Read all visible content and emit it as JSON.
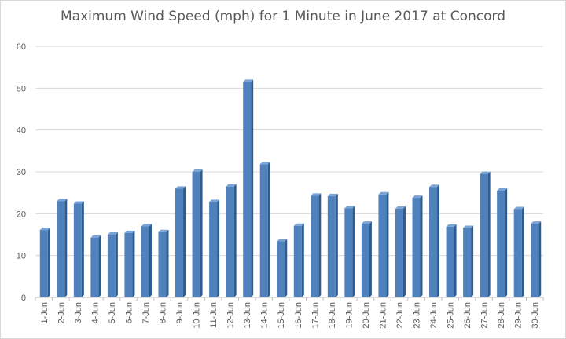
{
  "chart_data": {
    "type": "bar",
    "title": "Maximum Wind Speed (mph) for 1 Minute in June 2017 at Concord",
    "xlabel": "",
    "ylabel": "",
    "ylim": [
      0,
      60
    ],
    "yticks": [
      0,
      10,
      20,
      30,
      40,
      50,
      60
    ],
    "grid": true,
    "bar_color": "#4f81bd",
    "categories": [
      "1-Jun",
      "2-Jun",
      "3-Jun",
      "4-Jun",
      "5-Jun",
      "6-Jun",
      "7-Jun",
      "8-Jun",
      "9-Jun",
      "10-Jun",
      "11-Jun",
      "12-Jun",
      "13-Jun",
      "14-Jun",
      "15-Jun",
      "16-Jun",
      "17-Jun",
      "18-Jun",
      "19-Jun",
      "20-Jun",
      "21-Jun",
      "22-Jun",
      "23-Jun",
      "24-Jun",
      "25-Jun",
      "26-Jun",
      "27-Jun",
      "28-Jun",
      "29-Jun",
      "30-Jun"
    ],
    "values": [
      16.1,
      23.0,
      22.4,
      14.3,
      15.0,
      15.4,
      17.0,
      15.6,
      26.0,
      30.0,
      22.8,
      26.5,
      51.5,
      31.8,
      13.4,
      17.1,
      24.3,
      24.2,
      21.3,
      17.6,
      24.6,
      21.2,
      23.8,
      26.4,
      16.9,
      16.6,
      29.5,
      25.5,
      21.1,
      17.6
    ]
  }
}
